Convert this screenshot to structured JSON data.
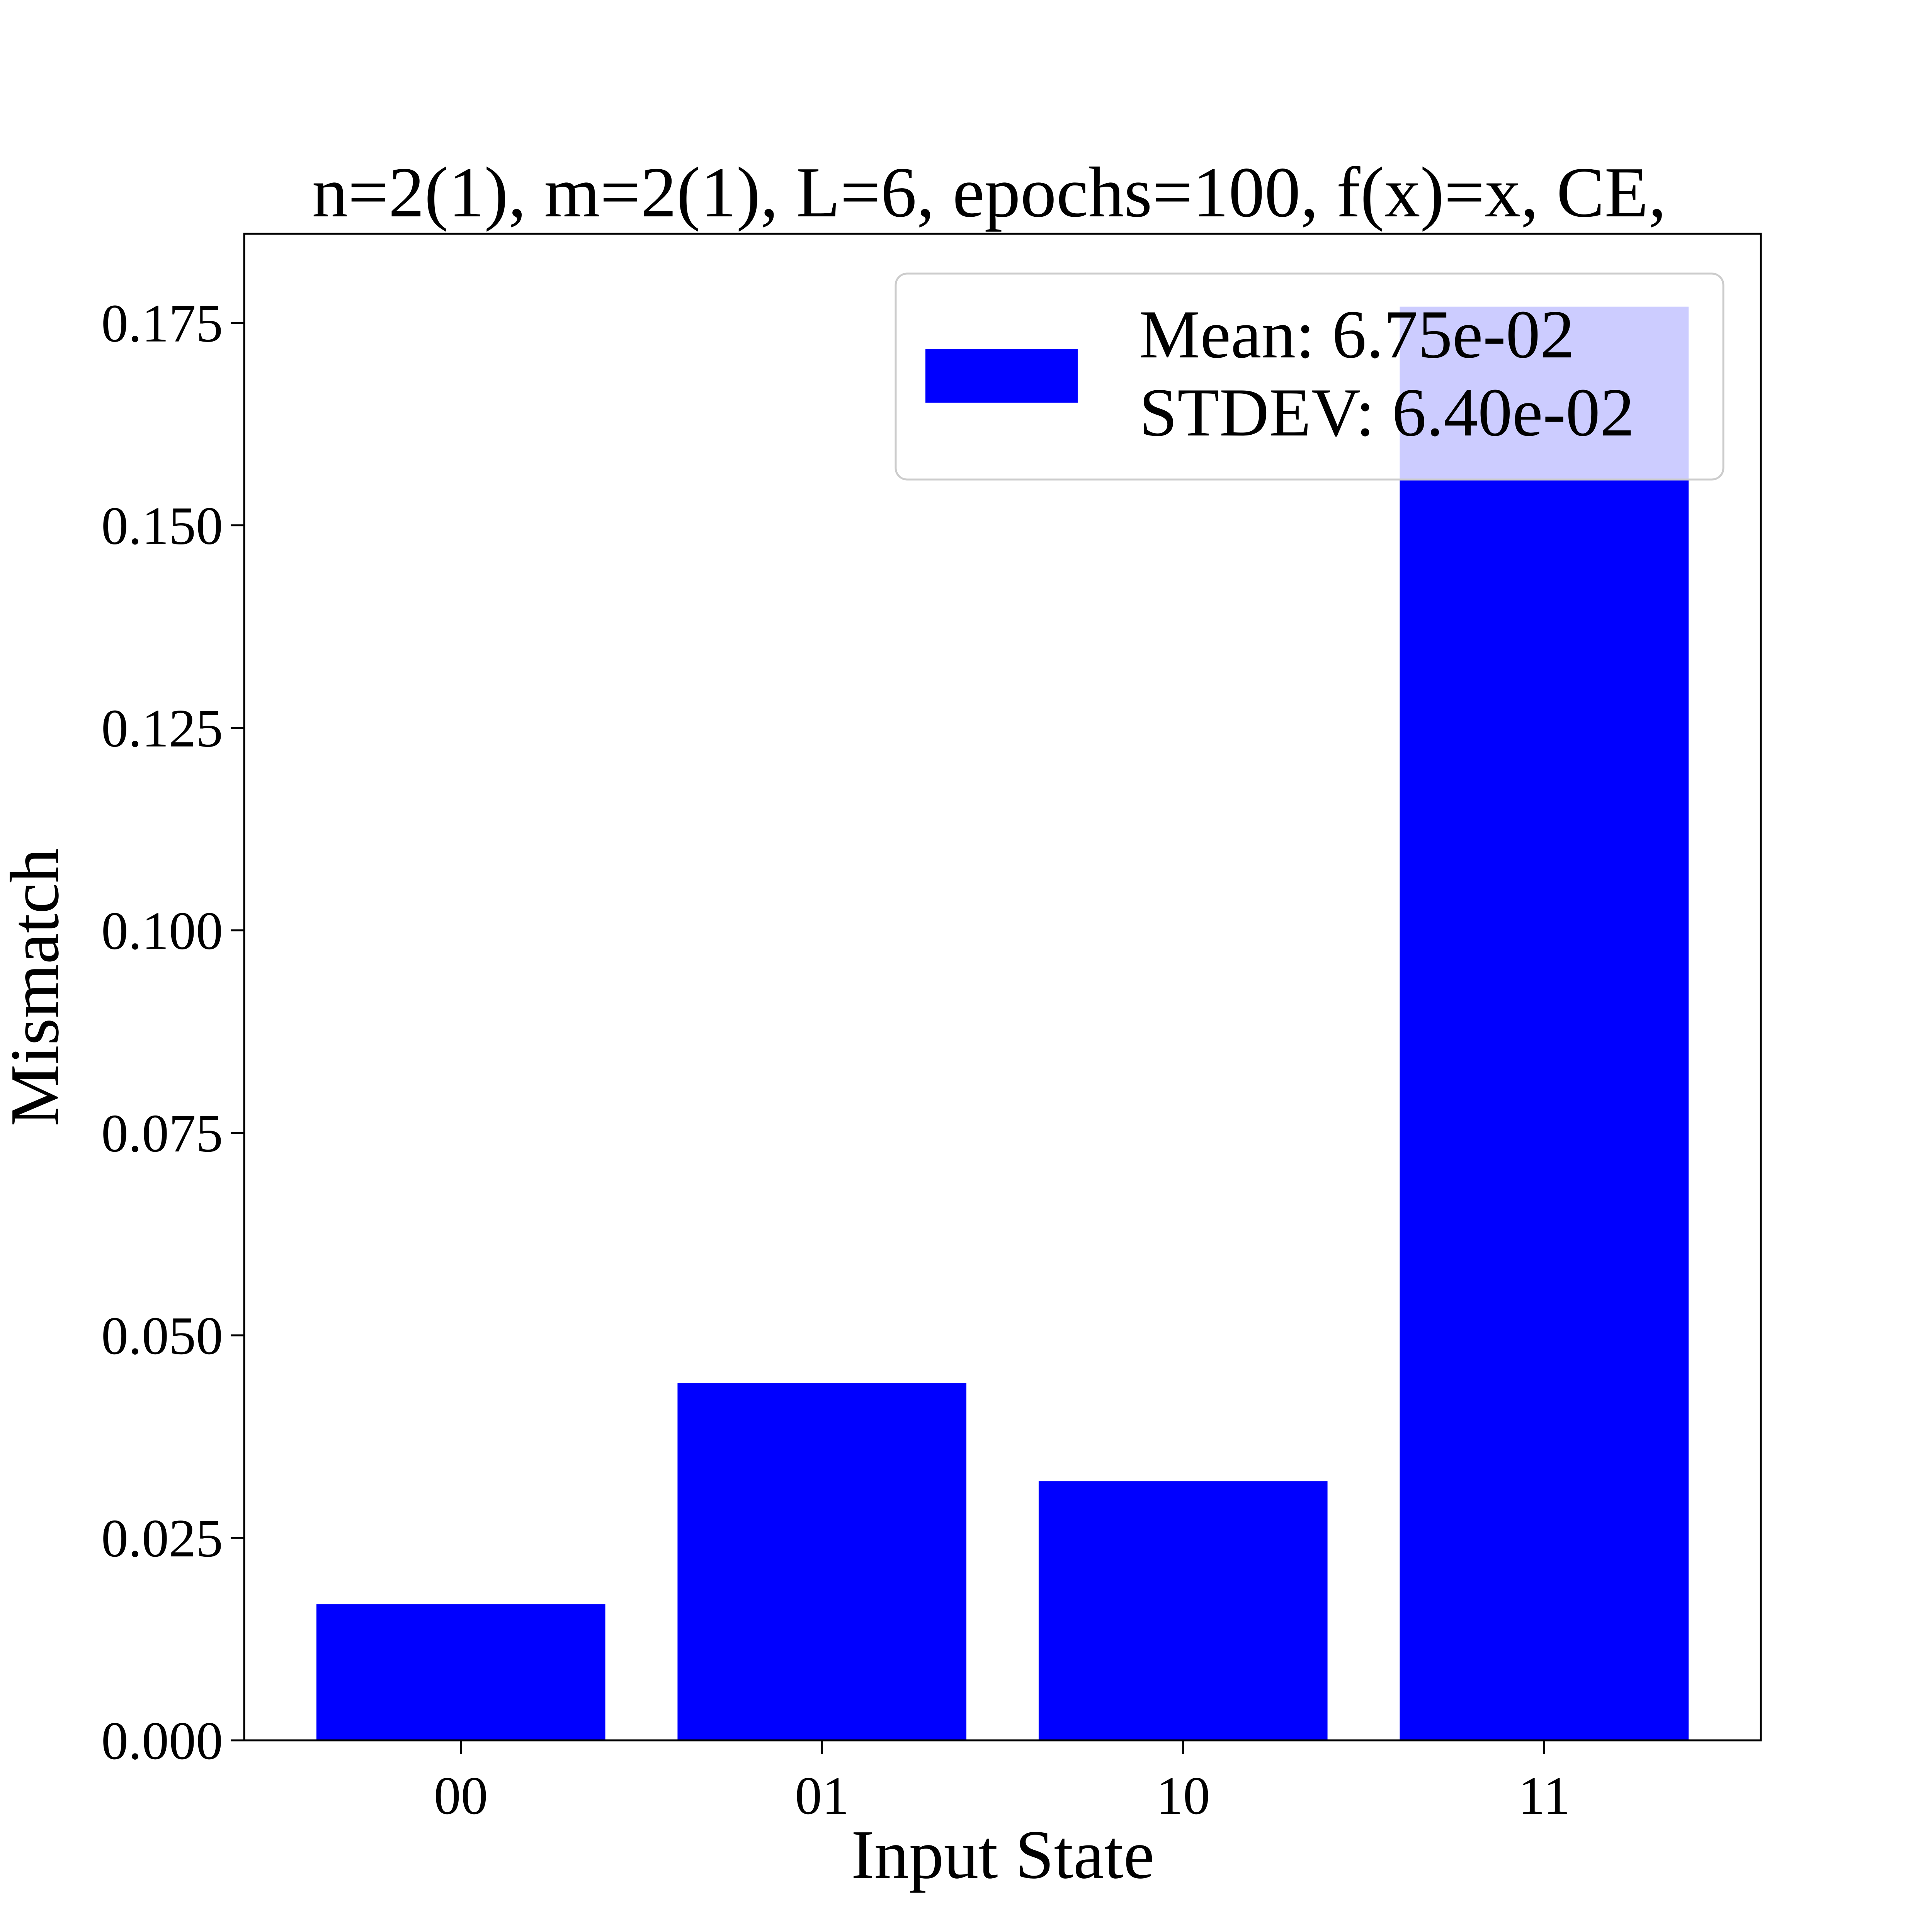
{
  "chart_data": {
    "type": "bar",
    "title": "n=2(1), m=2(1), L=6, epochs=100, f(x)=x, CE,",
    "xlabel": "Input State",
    "ylabel": "Mismatch",
    "categories": [
      "00",
      "01",
      "10",
      "11"
    ],
    "values": [
      0.0168,
      0.0441,
      0.032,
      0.177
    ],
    "ylim": [
      0,
      0.186
    ],
    "yticks": [
      0.0,
      0.025,
      0.05,
      0.075,
      0.1,
      0.125,
      0.15,
      0.175
    ],
    "ytick_labels": [
      "0.000",
      "0.025",
      "0.050",
      "0.075",
      "0.100",
      "0.125",
      "0.150",
      "0.175"
    ],
    "bar_color": "#0000ff",
    "grid": false,
    "legend": {
      "placement": "top-right",
      "lines": [
        "Mean: 6.75e-02",
        "STDEV: 6.40e-02"
      ],
      "swatch_color": "#0000ff"
    }
  }
}
